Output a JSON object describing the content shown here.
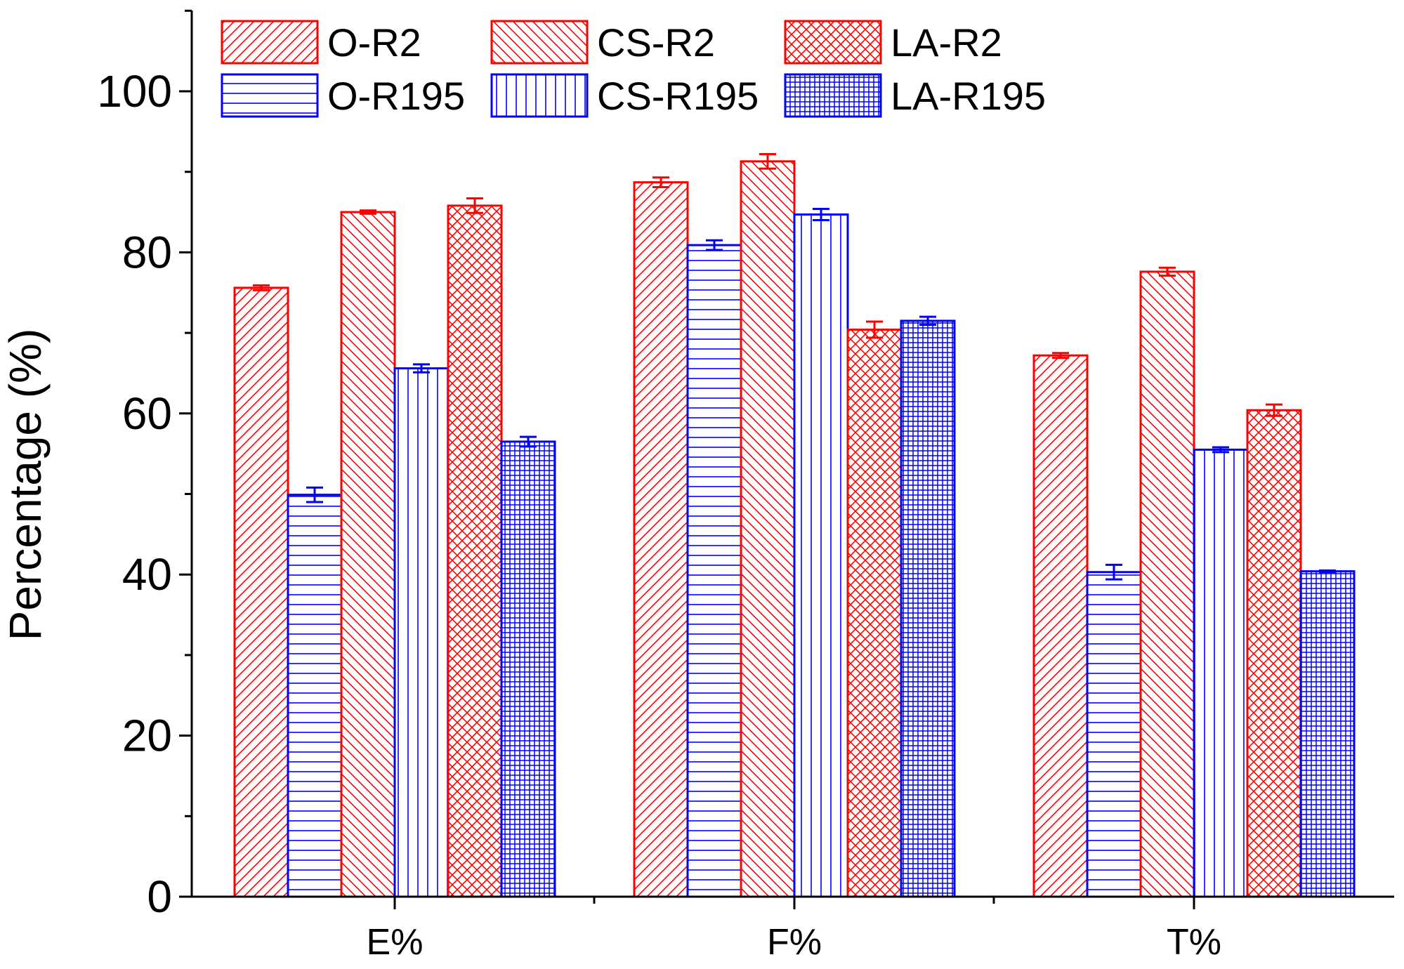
{
  "chart_data": {
    "type": "bar",
    "title": "",
    "xlabel": "",
    "ylabel": "Percentage (%)",
    "ylim": [
      0,
      110
    ],
    "yticks": [
      0,
      20,
      40,
      60,
      80,
      100
    ],
    "ytick_labels": [
      "0",
      "20",
      "40",
      "60",
      "80",
      "100"
    ],
    "categories": [
      "E%",
      "F%",
      "T%"
    ],
    "grid": false,
    "legend_position": "top",
    "series": [
      {
        "name": "O-R2",
        "values": [
          75.6,
          88.7,
          67.2
        ],
        "errors": [
          0.3,
          0.6,
          0.3
        ],
        "color": "#ff0000",
        "pattern": "diag-right"
      },
      {
        "name": "O-R195",
        "values": [
          49.9,
          80.9,
          40.3
        ],
        "errors": [
          0.9,
          0.6,
          0.9
        ],
        "color": "#0000ff",
        "pattern": "horizontal"
      },
      {
        "name": "CS-R2",
        "values": [
          85.0,
          91.3,
          77.6
        ],
        "errors": [
          0.2,
          0.9,
          0.5
        ],
        "color": "#ff0000",
        "pattern": "diag-left"
      },
      {
        "name": "CS-R195",
        "values": [
          65.6,
          84.7,
          55.5
        ],
        "errors": [
          0.5,
          0.7,
          0.3
        ],
        "color": "#0000ff",
        "pattern": "vertical"
      },
      {
        "name": "LA-R2",
        "values": [
          85.8,
          70.4,
          60.4
        ],
        "errors": [
          0.9,
          1.0,
          0.7
        ],
        "color": "#ff0000",
        "pattern": "crosshatch"
      },
      {
        "name": "LA-R195",
        "values": [
          56.5,
          71.5,
          40.4
        ],
        "errors": [
          0.6,
          0.5,
          0.1
        ],
        "color": "#0000ff",
        "pattern": "grid"
      }
    ],
    "legend_order": [
      "O-R2",
      "CS-R2",
      "LA-R2",
      "O-R195",
      "CS-R195",
      "LA-R195"
    ]
  }
}
